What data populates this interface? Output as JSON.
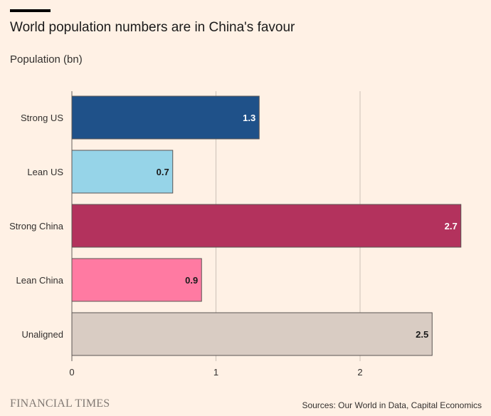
{
  "title": "World population numbers are in China's favour",
  "subtitle": "Population (bn)",
  "footer": {
    "brand": "FINANCIAL TIMES",
    "source": "Sources: Our World in Data, Capital Economics"
  },
  "chart_data": {
    "type": "bar",
    "orientation": "horizontal",
    "categories": [
      "Strong US",
      "Lean US",
      "Strong China",
      "Lean China",
      "Unaligned"
    ],
    "values": [
      1.3,
      0.7,
      2.7,
      0.9,
      2.5
    ],
    "value_labels": [
      "1.3",
      "0.7",
      "2.7",
      "0.9",
      "2.5"
    ],
    "colors": [
      "#1f5189",
      "#96d4e8",
      "#b3325d",
      "#ff7aa2",
      "#d9ccc3"
    ],
    "label_colors": [
      "#ffffff",
      "#1a1a1a",
      "#ffffff",
      "#1a1a1a",
      "#1a1a1a"
    ],
    "xlim": [
      0,
      2.7
    ],
    "xticks": [
      0,
      1,
      2
    ],
    "grid": true,
    "title": "World population numbers are in China's favour",
    "ylabel": "Population (bn)",
    "xlabel": ""
  }
}
